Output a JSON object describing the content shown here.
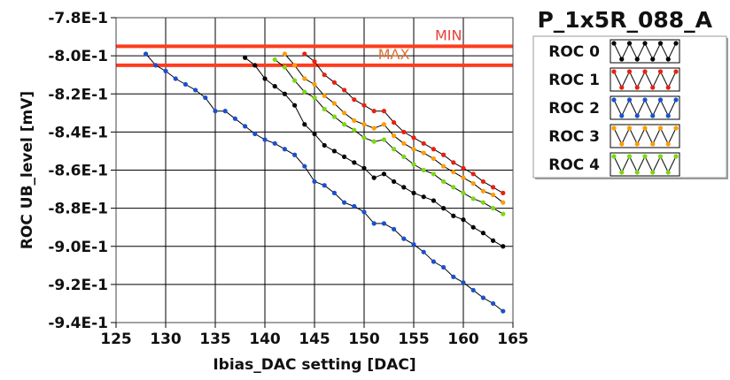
{
  "chart_data": {
    "type": "line",
    "title": "P_1x5R_088_A",
    "xlabel": "Ibias_DAC setting [DAC]",
    "ylabel": "ROC UB_level [mV]",
    "xlim": [
      125,
      165
    ],
    "ylim": [
      -940,
      -780
    ],
    "x_ticks": [
      "125",
      "130",
      "135",
      "140",
      "145",
      "150",
      "155",
      "160",
      "165"
    ],
    "y_ticks": [
      "-7.8E-1",
      "-8.0E-1",
      "-8.2E-1",
      "-8.4E-1",
      "-8.6E-1",
      "-8.8E-1",
      "-9.0E-1",
      "-9.2E-1",
      "-9.4E-1"
    ],
    "grid": true,
    "legend_position": "right",
    "limits": [
      {
        "label": "MIN",
        "value": -795,
        "color": "#ff3c1e",
        "label_color": "#e8403a"
      },
      {
        "label": "MAX",
        "value": -805,
        "color": "#ff3c1e",
        "label_color": "#e07030"
      }
    ],
    "series": [
      {
        "name": "ROC 0",
        "color": "#000000",
        "x": [
          138,
          139,
          140,
          141,
          142,
          143,
          144,
          145,
          146,
          147,
          148,
          149,
          150,
          151,
          152,
          153,
          154,
          155,
          156,
          157,
          158,
          159,
          160,
          161,
          162,
          163,
          164
        ],
        "y": [
          -801,
          -805,
          -812,
          -816,
          -820,
          -826,
          -836,
          -841,
          -847,
          -850,
          -853,
          -856,
          -859,
          -864,
          -862,
          -866,
          -869,
          -872,
          -874,
          -876,
          -880,
          -884,
          -886,
          -890,
          -893,
          -897,
          -900
        ]
      },
      {
        "name": "ROC 1",
        "color": "#e82010",
        "x": [
          144,
          145,
          146,
          147,
          148,
          149,
          150,
          151,
          152,
          153,
          154,
          155,
          156,
          157,
          158,
          159,
          160,
          161,
          162,
          163,
          164
        ],
        "y": [
          -799,
          -803,
          -810,
          -814,
          -818,
          -823,
          -826,
          -829,
          -829,
          -835,
          -840,
          -843,
          -846,
          -849,
          -852,
          -856,
          -859,
          -862,
          -866,
          -869,
          -872
        ]
      },
      {
        "name": "ROC 2",
        "color": "#1a4fd0",
        "x": [
          128,
          129,
          130,
          131,
          132,
          133,
          134,
          135,
          136,
          137,
          138,
          139,
          140,
          141,
          142,
          143,
          144,
          145,
          146,
          147,
          148,
          149,
          150,
          151,
          152,
          153,
          154,
          155,
          156,
          157,
          158,
          159,
          160,
          161,
          162,
          163,
          164
        ],
        "y": [
          -799,
          -805,
          -808,
          -812,
          -815,
          -818,
          -822,
          -829,
          -829,
          -833,
          -837,
          -841,
          -844,
          -846,
          -849,
          -852,
          -858,
          -866,
          -868,
          -872,
          -877,
          -879,
          -882,
          -888,
          -888,
          -891,
          -896,
          -899,
          -903,
          -908,
          -911,
          -916,
          -919,
          -923,
          -927,
          -930,
          -934
        ]
      },
      {
        "name": "ROC 3",
        "color": "#ff9c00",
        "x": [
          142,
          143,
          144,
          145,
          146,
          147,
          148,
          149,
          150,
          151,
          152,
          153,
          154,
          155,
          156,
          157,
          158,
          159,
          160,
          161,
          162,
          163,
          164
        ],
        "y": [
          -799,
          -805,
          -812,
          -815,
          -821,
          -825,
          -830,
          -834,
          -836,
          -838,
          -836,
          -842,
          -846,
          -849,
          -851,
          -854,
          -858,
          -861,
          -864,
          -867,
          -871,
          -873,
          -877
        ]
      },
      {
        "name": "ROC 4",
        "color": "#7cd812",
        "x": [
          141,
          142,
          143,
          144,
          145,
          146,
          147,
          148,
          149,
          150,
          151,
          152,
          153,
          154,
          155,
          156,
          157,
          158,
          159,
          160,
          161,
          162,
          163,
          164
        ],
        "y": [
          -802,
          -806,
          -813,
          -819,
          -822,
          -828,
          -832,
          -836,
          -839,
          -843,
          -845,
          -844,
          -849,
          -853,
          -857,
          -860,
          -862,
          -866,
          -869,
          -872,
          -875,
          -877,
          -880,
          -883
        ]
      }
    ]
  }
}
